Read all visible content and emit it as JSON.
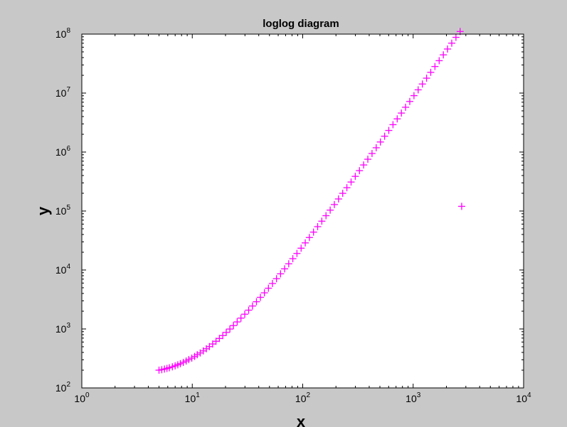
{
  "chart_data": {
    "type": "scatter",
    "title": "loglog diagram",
    "xlabel": "x",
    "ylabel": "y",
    "xscale": "log",
    "yscale": "log",
    "xlim": [
      1,
      10000
    ],
    "ylim": [
      100,
      100000000
    ],
    "xticks": [
      {
        "value": 1,
        "base": "10",
        "exp": "0"
      },
      {
        "value": 10,
        "base": "10",
        "exp": "1"
      },
      {
        "value": 100,
        "base": "10",
        "exp": "2"
      },
      {
        "value": 1000,
        "base": "10",
        "exp": "3"
      },
      {
        "value": 10000,
        "base": "10",
        "exp": "4"
      }
    ],
    "yticks": [
      {
        "value": 100,
        "base": "10",
        "exp": "2"
      },
      {
        "value": 1000,
        "base": "10",
        "exp": "3"
      },
      {
        "value": 10000,
        "base": "10",
        "exp": "4"
      },
      {
        "value": 100000,
        "base": "10",
        "exp": "5"
      },
      {
        "value": 1000000,
        "base": "10",
        "exp": "6"
      },
      {
        "value": 10000000,
        "base": "10",
        "exp": "7"
      },
      {
        "value": 100000000,
        "base": "10",
        "exp": "8"
      }
    ],
    "grid": false,
    "marker": "+",
    "marker_color": "#ff00ff",
    "background_color": "#c8c8c8",
    "axes_color": "#ffffff",
    "series": [
      {
        "x": [
          5,
          5.3,
          5.6,
          5.9,
          6.2,
          6.6,
          7.0,
          7.4,
          7.8,
          8.3,
          8.8,
          9.3,
          9.9,
          10.5,
          11.1,
          11.8,
          12.6,
          13.4,
          14.3,
          15.3,
          16.4,
          17.6,
          18.9,
          20.3,
          21.9,
          23.6,
          25.5,
          27.6,
          29.9,
          32.4,
          35.1,
          38.1,
          41.4,
          45.0,
          48.9,
          53.2,
          57.9,
          63.0,
          68.6,
          74.7,
          81.4,
          88.7,
          96.7,
          105.4,
          114.9,
          125.3,
          136.6,
          149.0,
          162.5,
          177.3,
          193.4,
          211.0,
          230.2,
          251.2,
          274.1,
          299.1,
          326.4,
          356.2,
          388.7,
          424.2,
          462.9,
          505.2,
          551.4,
          601.8,
          656.8,
          716.8,
          782.3,
          853.8,
          931.9,
          1017.1,
          1110.1,
          1211.6,
          1322.4,
          1443.3,
          1575.3,
          1719.4,
          1876.6,
          2048.2,
          2235.5,
          2439.9,
          2663.1,
          2750
        ],
        "y": [
          200,
          204,
          209,
          214,
          220,
          228,
          237,
          247,
          258,
          271,
          286,
          302,
          320,
          342,
          366,
          392,
          425,
          462,
          503,
          556,
          618,
          690,
          773,
          873,
          997,
          1141,
          1317,
          1527,
          1779,
          2083,
          2450,
          2895,
          3438,
          4100,
          4906,
          5899,
          7117,
          8610,
          10458,
          12739,
          15564,
          19066,
          23421,
          28821,
          35535,
          43884,
          54296,
          67233,
          83387,
          103536,
          128700,
          160161,
          199447,
          248564,
          310024,
          386977,
          483330,
          604059,
          755347,
          944981,
          1182757,
          1481004,
          1855060,
          2324428,
          2913405,
          3652633,
          4580595,
          5745725,
          7208822,
          9046097,
          11353745,
          14250766,
          17890045,
          22462287,
          28206545,
          35421938,
          44488126,
          55875939,
          70176440,
          88139044,
          110707432,
          120000
        ]
      }
    ]
  }
}
